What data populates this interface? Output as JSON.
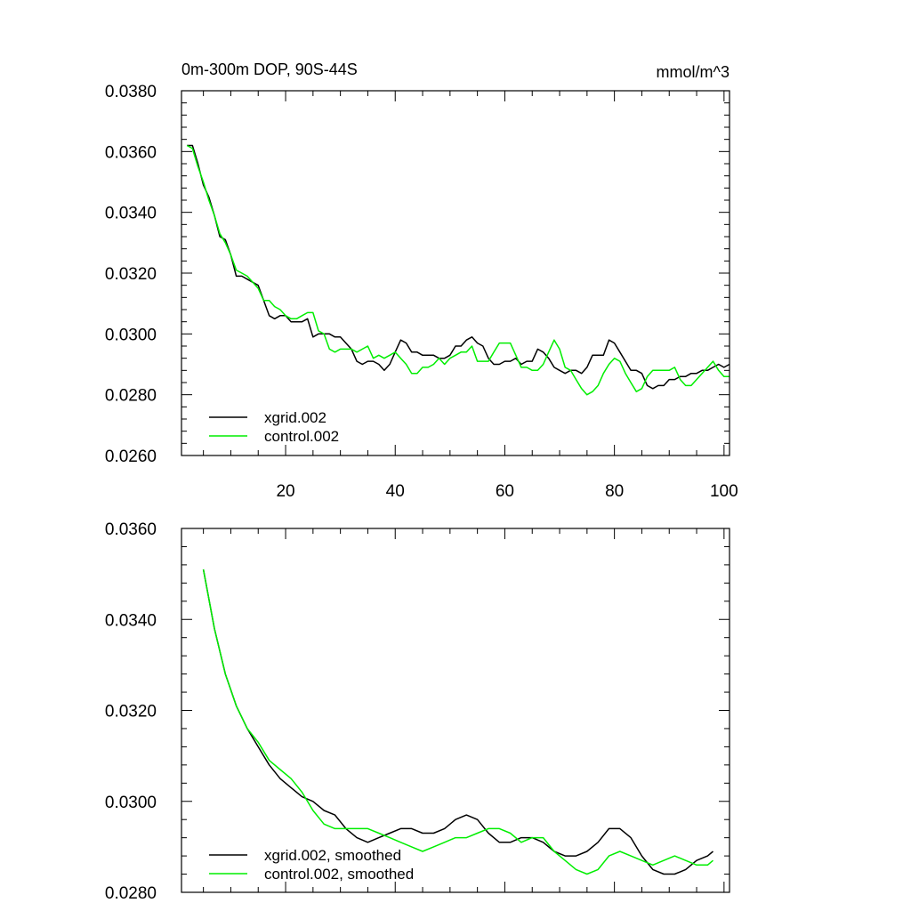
{
  "chart_data": [
    {
      "type": "line",
      "title": "0m-300m DOP, 90S-44S",
      "units": "mmol/m^3",
      "xlim": [
        1,
        101
      ],
      "ylim": [
        0.026,
        0.038
      ],
      "xticks": [
        20,
        40,
        60,
        80,
        100
      ],
      "xtick_labels": [
        "20",
        "40",
        "60",
        "80",
        "100"
      ],
      "yticks": [
        0.026,
        0.028,
        0.03,
        0.032,
        0.034,
        0.036,
        0.038
      ],
      "ytick_labels": [
        "0.0260",
        "0.0280",
        "0.0300",
        "0.0320",
        "0.0340",
        "0.0360",
        "0.0380"
      ],
      "legend_position": "bottom-left",
      "series": [
        {
          "name": "xgrid.002",
          "color": "#000000",
          "x": [
            2,
            3,
            4,
            5,
            6,
            7,
            8,
            9,
            10,
            11,
            12,
            13,
            14,
            15,
            16,
            17,
            18,
            19,
            20,
            21,
            22,
            23,
            24,
            25,
            26,
            27,
            28,
            29,
            30,
            31,
            32,
            33,
            34,
            35,
            36,
            37,
            38,
            39,
            40,
            41,
            42,
            43,
            44,
            45,
            46,
            47,
            48,
            49,
            50,
            51,
            52,
            53,
            54,
            55,
            56,
            57,
            58,
            59,
            60,
            61,
            62,
            63,
            64,
            65,
            66,
            67,
            68,
            69,
            70,
            71,
            72,
            73,
            74,
            75,
            76,
            77,
            78,
            79,
            80,
            81,
            82,
            83,
            84,
            85,
            86,
            87,
            88,
            89,
            90,
            91,
            92,
            93,
            94,
            95,
            96,
            97,
            98,
            99,
            100,
            101
          ],
          "values": [
            0.0362,
            0.0362,
            0.0356,
            0.0349,
            0.0345,
            0.0339,
            0.0332,
            0.0331,
            0.0326,
            0.0319,
            0.0319,
            0.0318,
            0.0317,
            0.0316,
            0.0311,
            0.0306,
            0.0305,
            0.0306,
            0.0306,
            0.0304,
            0.0304,
            0.0304,
            0.0305,
            0.0299,
            0.03,
            0.03,
            0.03,
            0.0299,
            0.0299,
            0.0297,
            0.0295,
            0.0291,
            0.029,
            0.0291,
            0.0291,
            0.029,
            0.0288,
            0.029,
            0.0294,
            0.0298,
            0.0297,
            0.0294,
            0.0294,
            0.0293,
            0.0293,
            0.0293,
            0.0292,
            0.0292,
            0.0293,
            0.0296,
            0.0296,
            0.0298,
            0.0299,
            0.0297,
            0.0296,
            0.0292,
            0.029,
            0.029,
            0.0291,
            0.0291,
            0.0292,
            0.029,
            0.0291,
            0.0291,
            0.0295,
            0.0294,
            0.0292,
            0.0289,
            0.0288,
            0.0287,
            0.0288,
            0.0288,
            0.0287,
            0.0289,
            0.0293,
            0.0293,
            0.0293,
            0.0298,
            0.0297,
            0.0294,
            0.0291,
            0.0288,
            0.0288,
            0.0287,
            0.0283,
            0.0282,
            0.0283,
            0.0283,
            0.0285,
            0.0285,
            0.0286,
            0.0286,
            0.0287,
            0.0287,
            0.0288,
            0.0288,
            0.0289,
            0.029,
            0.0289,
            0.029
          ]
        },
        {
          "name": "control.002",
          "color": "#00ee00",
          "x": [
            2,
            3,
            4,
            5,
            6,
            7,
            8,
            9,
            10,
            11,
            12,
            13,
            14,
            15,
            16,
            17,
            18,
            19,
            20,
            21,
            22,
            23,
            24,
            25,
            26,
            27,
            28,
            29,
            30,
            31,
            32,
            33,
            34,
            35,
            36,
            37,
            38,
            39,
            40,
            41,
            42,
            43,
            44,
            45,
            46,
            47,
            48,
            49,
            50,
            51,
            52,
            53,
            54,
            55,
            56,
            57,
            58,
            59,
            60,
            61,
            62,
            63,
            64,
            65,
            66,
            67,
            68,
            69,
            70,
            71,
            72,
            73,
            74,
            75,
            76,
            77,
            78,
            79,
            80,
            81,
            82,
            83,
            84,
            85,
            86,
            87,
            88,
            89,
            90,
            91,
            92,
            93,
            94,
            95,
            96,
            97,
            98,
            99,
            100,
            101
          ],
          "values": [
            0.0362,
            0.0361,
            0.0355,
            0.035,
            0.0344,
            0.0339,
            0.0333,
            0.033,
            0.0326,
            0.0321,
            0.032,
            0.0319,
            0.0317,
            0.0315,
            0.0311,
            0.0311,
            0.0309,
            0.0308,
            0.0306,
            0.0305,
            0.0305,
            0.0306,
            0.0307,
            0.0307,
            0.0301,
            0.03,
            0.0295,
            0.0294,
            0.0295,
            0.0295,
            0.0295,
            0.0294,
            0.0295,
            0.0296,
            0.0292,
            0.0293,
            0.0292,
            0.0293,
            0.0294,
            0.0292,
            0.029,
            0.0287,
            0.0287,
            0.0289,
            0.0289,
            0.029,
            0.0292,
            0.029,
            0.0292,
            0.0293,
            0.0294,
            0.0294,
            0.0296,
            0.0291,
            0.0291,
            0.0291,
            0.0294,
            0.0297,
            0.0297,
            0.0297,
            0.0293,
            0.0289,
            0.0289,
            0.0288,
            0.0288,
            0.029,
            0.0294,
            0.0298,
            0.0295,
            0.0289,
            0.0288,
            0.0285,
            0.0282,
            0.028,
            0.0281,
            0.0283,
            0.0287,
            0.029,
            0.0292,
            0.0291,
            0.0287,
            0.0284,
            0.0281,
            0.0282,
            0.0286,
            0.0288,
            0.0288,
            0.0288,
            0.0288,
            0.0289,
            0.0285,
            0.0283,
            0.0283,
            0.0285,
            0.0287,
            0.0289,
            0.0291,
            0.0288,
            0.0286,
            0.0286
          ]
        }
      ]
    },
    {
      "type": "line",
      "title": "",
      "xlim": [
        1,
        101
      ],
      "ylim": [
        0.028,
        0.036
      ],
      "xticks": [
        20,
        40,
        60,
        80,
        100
      ],
      "yticks": [
        0.028,
        0.03,
        0.032,
        0.034,
        0.036
      ],
      "ytick_labels": [
        "0.0280",
        "0.0300",
        "0.0320",
        "0.0340",
        "0.0360"
      ],
      "legend_position": "bottom-left",
      "series": [
        {
          "name": "xgrid.002, smoothed",
          "color": "#000000",
          "x": [
            5,
            7,
            9,
            11,
            13,
            15,
            17,
            19,
            21,
            23,
            25,
            27,
            29,
            31,
            33,
            35,
            37,
            39,
            41,
            43,
            45,
            47,
            49,
            51,
            53,
            55,
            57,
            59,
            61,
            63,
            65,
            67,
            69,
            71,
            73,
            75,
            77,
            79,
            81,
            83,
            85,
            87,
            89,
            91,
            93,
            95,
            97,
            98
          ],
          "values": [
            0.0351,
            0.0338,
            0.0328,
            0.0321,
            0.0316,
            0.0312,
            0.0308,
            0.0305,
            0.0303,
            0.0301,
            0.03,
            0.0298,
            0.0297,
            0.0294,
            0.0292,
            0.0291,
            0.0292,
            0.0293,
            0.0294,
            0.0294,
            0.0293,
            0.0293,
            0.0294,
            0.0296,
            0.0297,
            0.0296,
            0.0293,
            0.0291,
            0.0291,
            0.0292,
            0.0292,
            0.0291,
            0.0289,
            0.0288,
            0.0288,
            0.0289,
            0.0291,
            0.0294,
            0.0294,
            0.0292,
            0.0288,
            0.0285,
            0.0284,
            0.0284,
            0.0285,
            0.0287,
            0.0288,
            0.0289
          ]
        },
        {
          "name": "control.002, smoothed",
          "color": "#00ee00",
          "x": [
            5,
            7,
            9,
            11,
            13,
            15,
            17,
            19,
            21,
            23,
            25,
            27,
            29,
            31,
            33,
            35,
            37,
            39,
            41,
            43,
            45,
            47,
            49,
            51,
            53,
            55,
            57,
            59,
            61,
            63,
            65,
            67,
            69,
            71,
            73,
            75,
            77,
            79,
            81,
            83,
            85,
            87,
            89,
            91,
            93,
            95,
            97,
            98
          ],
          "values": [
            0.0351,
            0.0338,
            0.0328,
            0.0321,
            0.0316,
            0.0313,
            0.0309,
            0.0307,
            0.0305,
            0.0302,
            0.0298,
            0.0295,
            0.0294,
            0.0294,
            0.0294,
            0.0294,
            0.0293,
            0.0292,
            0.0291,
            0.029,
            0.0289,
            0.029,
            0.0291,
            0.0292,
            0.0292,
            0.0293,
            0.0294,
            0.0294,
            0.0293,
            0.0291,
            0.0292,
            0.0292,
            0.0289,
            0.0287,
            0.0285,
            0.0284,
            0.0285,
            0.0288,
            0.0289,
            0.0288,
            0.0287,
            0.0286,
            0.0287,
            0.0288,
            0.0287,
            0.0286,
            0.0286,
            0.0287
          ]
        }
      ]
    }
  ]
}
